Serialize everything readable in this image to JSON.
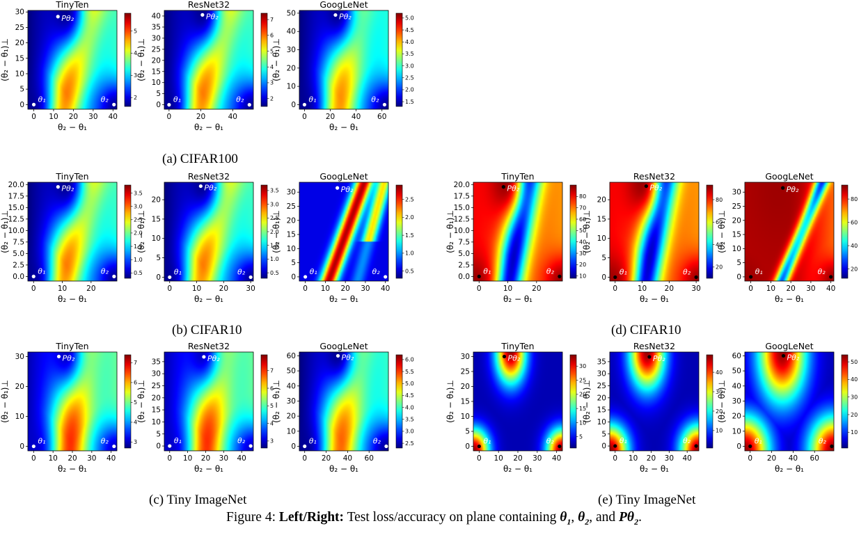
{
  "colors": {
    "colormap": "jet",
    "marker_loss": "#ffffff",
    "marker_acc": "#000000"
  },
  "labels": {
    "xlabel": "θ₂ − θ₁",
    "ylabel": "(θ₂ − θ₁)⊥",
    "point_theta1": "θ₁",
    "point_theta2": "θ₂",
    "point_ptheta2": "Pθ₂"
  },
  "captions": {
    "a": "(a) CIFAR100",
    "b": "(b) CIFAR10",
    "c": "(c) Tiny ImageNet",
    "d": "(d) CIFAR10",
    "e": "(e) Tiny ImageNet",
    "figure_prefix": "Figure 4: ",
    "figure_bold": "Left/Right:",
    "figure_text": " Test loss/accuracy on plane containing ",
    "figure_theta1": "θ",
    "figure_theta1_sub": "1",
    "figure_comma1": ", ",
    "figure_theta2": "θ",
    "figure_theta2_sub": "2",
    "figure_and": ", and ",
    "figure_ptheta2": "Pθ",
    "figure_ptheta2_sub": "2",
    "figure_end": "."
  },
  "chart_data": [
    {
      "id": "a1",
      "type": "heatmap",
      "metric": "loss",
      "dataset": "CIFAR100",
      "title": "TinyTen",
      "xticks": [
        "0",
        "10",
        "20",
        "30",
        "40"
      ],
      "xvals": [
        0,
        10,
        20,
        30,
        40
      ],
      "xlim": [
        -3,
        42
      ],
      "yticks": [
        "0",
        "5",
        "10",
        "15",
        "20",
        "25",
        "30"
      ],
      "yvals": [
        0,
        5,
        10,
        15,
        20,
        25,
        30
      ],
      "ylim": [
        -1.5,
        30.5
      ],
      "theta2_x": 40.5,
      "ptheta2": [
        12.2,
        28.5
      ],
      "cbar": {
        "ticks": [
          "2",
          "3",
          "4",
          "5"
        ],
        "vals": [
          2,
          3,
          4,
          5
        ],
        "range": [
          1.6,
          5.8
        ]
      }
    },
    {
      "id": "a2",
      "type": "heatmap",
      "metric": "loss",
      "dataset": "CIFAR100",
      "title": "ResNet32",
      "xticks": [
        "0",
        "20",
        "40"
      ],
      "xvals": [
        0,
        20,
        40
      ],
      "xlim": [
        -3,
        53
      ],
      "yticks": [
        "0",
        "5",
        "10",
        "15",
        "20",
        "25",
        "30",
        "35",
        "40"
      ],
      "yvals": [
        0,
        5,
        10,
        15,
        20,
        25,
        30,
        35,
        40
      ],
      "ylim": [
        -2,
        42.5
      ],
      "theta2_x": 50.5,
      "ptheta2": [
        21,
        40.5
      ],
      "cbar": {
        "ticks": [
          "2",
          "3",
          "4",
          "5",
          "6",
          "7"
        ],
        "vals": [
          2,
          3,
          4,
          5,
          6,
          7
        ],
        "range": [
          1.5,
          7.4
        ]
      }
    },
    {
      "id": "a3",
      "type": "heatmap",
      "metric": "loss",
      "dataset": "CIFAR100",
      "title": "GoogLeNet",
      "xticks": [
        "0",
        "20",
        "40",
        "60"
      ],
      "xvals": [
        0,
        20,
        40,
        60
      ],
      "xlim": [
        -4,
        65
      ],
      "yticks": [
        "0",
        "10",
        "20",
        "30",
        "40",
        "50"
      ],
      "yvals": [
        0,
        10,
        20,
        30,
        40,
        50
      ],
      "ylim": [
        -2.5,
        51.5
      ],
      "theta2_x": 62,
      "ptheta2": [
        24,
        49
      ],
      "cbar": {
        "ticks": [
          "1.5",
          "2.0",
          "2.5",
          "3.0",
          "3.5",
          "4.0",
          "4.5",
          "5.0"
        ],
        "vals": [
          1.5,
          2.0,
          2.5,
          3.0,
          3.5,
          4.0,
          4.5,
          5.0
        ],
        "range": [
          1.3,
          5.2
        ]
      }
    },
    {
      "id": "b1",
      "type": "heatmap",
      "metric": "loss",
      "dataset": "CIFAR10",
      "title": "TinyTen",
      "xticks": [
        "0",
        "10",
        "20"
      ],
      "xvals": [
        0,
        10,
        20
      ],
      "xlim": [
        -2,
        29
      ],
      "yticks": [
        "0.0",
        "2.5",
        "5.0",
        "7.5",
        "10.0",
        "12.5",
        "15.0",
        "17.5",
        "20.0"
      ],
      "yvals": [
        0,
        2.5,
        5,
        7.5,
        10,
        12.5,
        15,
        17.5,
        20
      ],
      "ylim": [
        -1,
        20.5
      ],
      "theta2_x": 28,
      "ptheta2": [
        8.5,
        19.5
      ],
      "cbar": {
        "ticks": [
          "0.5",
          "1.0",
          "1.5",
          "2.0",
          "2.5",
          "3.0",
          "3.5"
        ],
        "vals": [
          0.5,
          1.0,
          1.5,
          2.0,
          2.5,
          3.0,
          3.5
        ],
        "range": [
          0.3,
          3.8
        ]
      }
    },
    {
      "id": "b2",
      "type": "heatmap",
      "metric": "loss",
      "dataset": "CIFAR10",
      "title": "ResNet32",
      "xticks": [
        "0",
        "10",
        "20",
        "30"
      ],
      "xvals": [
        0,
        10,
        20,
        30
      ],
      "xlim": [
        -2,
        31
      ],
      "yticks": [
        "0",
        "5",
        "10",
        "15",
        "20"
      ],
      "yvals": [
        0,
        5,
        10,
        15,
        20
      ],
      "ylim": [
        -1,
        24.5
      ],
      "theta2_x": 30,
      "ptheta2": [
        11.5,
        23.5
      ],
      "cbar": {
        "ticks": [
          "0.5",
          "1.0",
          "1.5",
          "2.0",
          "2.5",
          "3.0",
          "3.5"
        ],
        "vals": [
          0.5,
          1.0,
          1.5,
          2.0,
          2.5,
          3.0,
          3.5
        ],
        "range": [
          0.3,
          3.7
        ]
      }
    },
    {
      "id": "b3",
      "type": "heatmap",
      "metric": "loss",
      "dataset": "CIFAR10",
      "title": "GoogLeNet",
      "xticks": [
        "0",
        "10",
        "20",
        "30",
        "40"
      ],
      "xvals": [
        0,
        10,
        20,
        30,
        40
      ],
      "xlim": [
        -3,
        41.5
      ],
      "yticks": [
        "0",
        "5",
        "10",
        "15",
        "20",
        "25",
        "30"
      ],
      "yvals": [
        0,
        5,
        10,
        15,
        20,
        25,
        30
      ],
      "ylim": [
        -1.5,
        33.5
      ],
      "theta2_x": 40,
      "ptheta2": [
        16,
        31.5
      ],
      "cbar": {
        "ticks": [
          "0.5",
          "1.0",
          "1.5",
          "2.0",
          "2.5"
        ],
        "vals": [
          0.5,
          1.0,
          1.5,
          2.0,
          2.5
        ],
        "range": [
          0.3,
          2.9
        ]
      }
    },
    {
      "id": "d1",
      "type": "heatmap",
      "metric": "accuracy",
      "dataset": "CIFAR10",
      "title": "TinyTen",
      "xticks": [
        "0",
        "10",
        "20"
      ],
      "xvals": [
        0,
        10,
        20
      ],
      "xlim": [
        -2,
        29
      ],
      "yticks": [
        "0.0",
        "2.5",
        "5.0",
        "7.5",
        "10.0",
        "12.5",
        "15.0",
        "17.5",
        "20.0"
      ],
      "yvals": [
        0,
        2.5,
        5,
        7.5,
        10,
        12.5,
        15,
        17.5,
        20
      ],
      "ylim": [
        -1,
        20.5
      ],
      "theta2_x": 28,
      "ptheta2": [
        8.5,
        19.5
      ],
      "cbar": {
        "ticks": [
          "10",
          "20",
          "30",
          "40",
          "50",
          "60",
          "70",
          "80"
        ],
        "vals": [
          10,
          20,
          30,
          40,
          50,
          60,
          70,
          80
        ],
        "range": [
          8,
          90
        ]
      }
    },
    {
      "id": "d2",
      "type": "heatmap",
      "metric": "accuracy",
      "dataset": "CIFAR10",
      "title": "ResNet32",
      "xticks": [
        "0",
        "10",
        "20",
        "30"
      ],
      "xvals": [
        0,
        10,
        20,
        30
      ],
      "xlim": [
        -2,
        31
      ],
      "yticks": [
        "0",
        "5",
        "10",
        "15",
        "20"
      ],
      "yvals": [
        0,
        5,
        10,
        15,
        20
      ],
      "ylim": [
        -1,
        24.5
      ],
      "theta2_x": 30,
      "ptheta2": [
        11.5,
        23.5
      ],
      "cbar": {
        "ticks": [
          "20",
          "40",
          "60",
          "80"
        ],
        "vals": [
          20,
          40,
          60,
          80
        ],
        "range": [
          10,
          93
        ]
      }
    },
    {
      "id": "d3",
      "type": "heatmap",
      "metric": "accuracy",
      "dataset": "CIFAR10",
      "title": "GoogLeNet",
      "xticks": [
        "0",
        "10",
        "20",
        "30",
        "40"
      ],
      "xvals": [
        0,
        10,
        20,
        30,
        40
      ],
      "xlim": [
        -3,
        41.5
      ],
      "yticks": [
        "0",
        "5",
        "10",
        "15",
        "20",
        "25",
        "30"
      ],
      "yvals": [
        0,
        5,
        10,
        15,
        20,
        25,
        30
      ],
      "ylim": [
        -1.5,
        33.5
      ],
      "theta2_x": 40,
      "ptheta2": [
        16,
        31.5
      ],
      "cbar": {
        "ticks": [
          "20",
          "40",
          "60",
          "80"
        ],
        "vals": [
          20,
          40,
          60,
          80
        ],
        "range": [
          12,
          92
        ]
      }
    },
    {
      "id": "c1",
      "type": "heatmap",
      "metric": "loss",
      "dataset": "Tiny ImageNet",
      "title": "TinyTen",
      "xticks": [
        "0",
        "10",
        "20",
        "30",
        "40"
      ],
      "xvals": [
        0,
        10,
        20,
        30,
        40
      ],
      "xlim": [
        -3,
        43
      ],
      "yticks": [
        "0",
        "10",
        "20",
        "30"
      ],
      "yvals": [
        0,
        10,
        20,
        30
      ],
      "ylim": [
        -1.5,
        31.5
      ],
      "theta2_x": 41.5,
      "ptheta2": [
        13,
        30
      ],
      "cbar": {
        "ticks": [
          "3",
          "4",
          "5",
          "6",
          "7"
        ],
        "vals": [
          3,
          4,
          5,
          6,
          7
        ],
        "range": [
          2.7,
          7.4
        ]
      }
    },
    {
      "id": "c2",
      "type": "heatmap",
      "metric": "loss",
      "dataset": "Tiny ImageNet",
      "title": "ResNet32",
      "xticks": [
        "0",
        "10",
        "20",
        "30",
        "40"
      ],
      "xvals": [
        0,
        10,
        20,
        30,
        40
      ],
      "xlim": [
        -3,
        46.5
      ],
      "yticks": [
        "0",
        "5",
        "10",
        "15",
        "20",
        "25",
        "30",
        "35"
      ],
      "yvals": [
        0,
        5,
        10,
        15,
        20,
        25,
        30,
        35
      ],
      "ylim": [
        -2,
        39
      ],
      "theta2_x": 45,
      "ptheta2": [
        19,
        37
      ],
      "cbar": {
        "ticks": [
          "3",
          "4",
          "5",
          "6",
          "7"
        ],
        "vals": [
          3,
          4,
          5,
          6,
          7
        ],
        "range": [
          2.6,
          7.9
        ]
      }
    },
    {
      "id": "c3",
      "type": "heatmap",
      "metric": "loss",
      "dataset": "Tiny ImageNet",
      "title": "GoogLeNet",
      "xticks": [
        "0",
        "20",
        "40",
        "60"
      ],
      "xvals": [
        0,
        20,
        40,
        60
      ],
      "xlim": [
        -5,
        78
      ],
      "yticks": [
        "0",
        "10",
        "20",
        "30",
        "40",
        "50",
        "60"
      ],
      "yvals": [
        0,
        10,
        20,
        30,
        40,
        50,
        60
      ],
      "ylim": [
        -3,
        62.5
      ],
      "theta2_x": 76,
      "ptheta2": [
        31,
        60
      ],
      "cbar": {
        "ticks": [
          "2.5",
          "3.0",
          "3.5",
          "4.0",
          "4.5",
          "5.0",
          "5.5",
          "6.0"
        ],
        "vals": [
          2.5,
          3.0,
          3.5,
          4.0,
          4.5,
          5.0,
          5.5,
          6.0
        ],
        "range": [
          2.3,
          6.2
        ]
      }
    },
    {
      "id": "e1",
      "type": "heatmap",
      "metric": "accuracy",
      "dataset": "Tiny ImageNet",
      "title": "TinyTen",
      "xticks": [
        "0",
        "10",
        "20",
        "30",
        "40"
      ],
      "xvals": [
        0,
        10,
        20,
        30,
        40
      ],
      "xlim": [
        -3,
        43
      ],
      "yticks": [
        "0",
        "5",
        "10",
        "15",
        "20",
        "25",
        "30"
      ],
      "yvals": [
        0,
        5,
        10,
        15,
        20,
        25,
        30
      ],
      "ylim": [
        -1.5,
        31.5
      ],
      "theta2_x": 41.5,
      "ptheta2": [
        13,
        30
      ],
      "cbar": {
        "ticks": [
          "5",
          "10",
          "15",
          "20",
          "25",
          "30"
        ],
        "vals": [
          5,
          10,
          15,
          20,
          25,
          30
        ],
        "range": [
          1,
          34
        ]
      }
    },
    {
      "id": "e2",
      "type": "heatmap",
      "metric": "accuracy",
      "dataset": "Tiny ImageNet",
      "title": "ResNet32",
      "xticks": [
        "0",
        "10",
        "20",
        "30",
        "40"
      ],
      "xvals": [
        0,
        10,
        20,
        30,
        40
      ],
      "xlim": [
        -3,
        46.5
      ],
      "yticks": [
        "0",
        "5",
        "10",
        "15",
        "20",
        "25",
        "30",
        "35"
      ],
      "yvals": [
        0,
        5,
        10,
        15,
        20,
        25,
        30,
        35
      ],
      "ylim": [
        -2,
        39
      ],
      "theta2_x": 45,
      "ptheta2": [
        19,
        37
      ],
      "cbar": {
        "ticks": [
          "10",
          "20",
          "30",
          "40"
        ],
        "vals": [
          10,
          20,
          30,
          40
        ],
        "range": [
          1,
          49
        ]
      }
    },
    {
      "id": "e3",
      "type": "heatmap",
      "metric": "accuracy",
      "dataset": "Tiny ImageNet",
      "title": "GoogLeNet",
      "xticks": [
        "0",
        "20",
        "40",
        "60"
      ],
      "xvals": [
        0,
        20,
        40,
        60
      ],
      "xlim": [
        -5,
        78
      ],
      "yticks": [
        "0",
        "10",
        "20",
        "30",
        "40",
        "50",
        "60"
      ],
      "yvals": [
        0,
        10,
        20,
        30,
        40,
        50,
        60
      ],
      "ylim": [
        -3,
        62.5
      ],
      "theta2_x": 76,
      "ptheta2": [
        31,
        60
      ],
      "cbar": {
        "ticks": [
          "10",
          "20",
          "30",
          "40",
          "50"
        ],
        "vals": [
          10,
          20,
          30,
          40,
          50
        ],
        "range": [
          1,
          54
        ]
      }
    }
  ]
}
